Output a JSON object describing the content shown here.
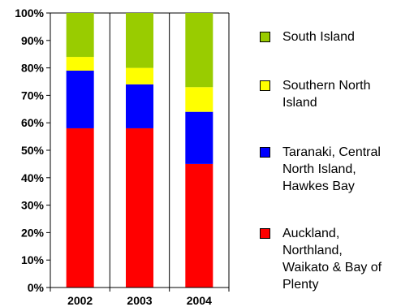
{
  "chart_data": {
    "type": "bar",
    "stacked": true,
    "categories": [
      "2002",
      "2003",
      "2004"
    ],
    "series": [
      {
        "name": "Auckland, Northland, Waikato & Bay of Plenty",
        "color": "#ff0000",
        "values": [
          58,
          58,
          45
        ]
      },
      {
        "name": "Taranaki, Central North Island, Hawkes Bay",
        "color": "#0000ff",
        "values": [
          21,
          16,
          19
        ]
      },
      {
        "name": "Southern North Island",
        "color": "#ffff00",
        "values": [
          5,
          6,
          9
        ]
      },
      {
        "name": "South Island",
        "color": "#99cc00",
        "values": [
          16,
          20,
          27
        ]
      }
    ],
    "ylim": [
      0,
      100
    ],
    "y_ticks": [
      "0%",
      "10%",
      "20%",
      "30%",
      "40%",
      "50%",
      "60%",
      "70%",
      "80%",
      "90%",
      "100%"
    ],
    "grid": true,
    "legend_position": "right"
  },
  "legend": [
    {
      "label": "South Island",
      "color": "#99cc00"
    },
    {
      "label": "Southern North\nIsland",
      "color": "#ffff00"
    },
    {
      "label": "Taranaki, Central\nNorth Island,\nHawkes Bay",
      "color": "#0000ff"
    },
    {
      "label": "Auckland,\nNorthland,\nWaikato & Bay of\nPlenty",
      "color": "#ff0000"
    }
  ]
}
